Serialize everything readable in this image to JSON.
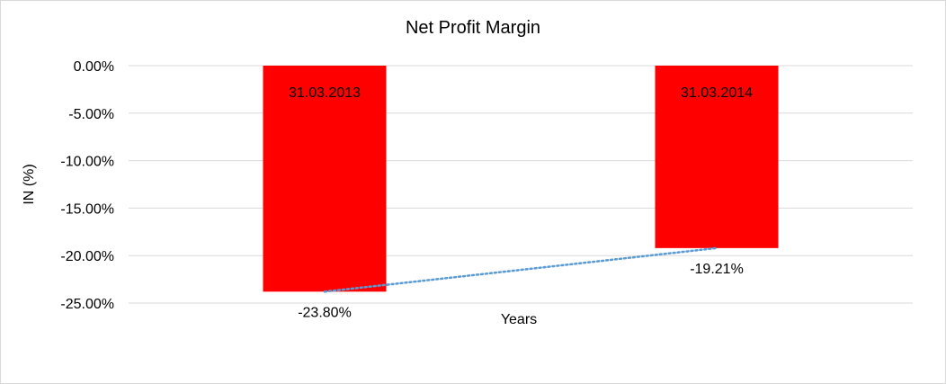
{
  "chart_data": {
    "type": "bar",
    "title": "Net Profit Margin",
    "xlabel": "Years",
    "ylabel": "IN (%)",
    "categories": [
      "31.03.2013",
      "31.03.2014"
    ],
    "values": [
      -23.8,
      -19.21
    ],
    "value_labels": [
      "-23.80%",
      "-19.21%"
    ],
    "yticks": [
      "0.00%",
      "-5.00%",
      "-10.00%",
      "-15.00%",
      "-20.00%",
      "-25.00%"
    ],
    "ytick_values": [
      0,
      -5,
      -10,
      -15,
      -20,
      -25
    ],
    "ylim": [
      -25,
      0
    ],
    "grid": true,
    "bar_color": "#ff0000",
    "trendline": {
      "type": "linear",
      "style": "dotted",
      "color": "#5b9bd5"
    }
  }
}
